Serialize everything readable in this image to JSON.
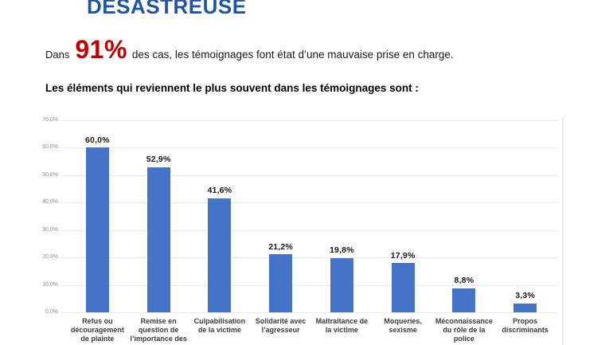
{
  "title": "DÉSASTREUSE",
  "intro": {
    "prefix": "Dans",
    "highlight": "91%",
    "suffix": "des cas, les témoignages font état d’une mauvaise prise en charge."
  },
  "chart_heading": "Les éléments qui reviennent le plus souvent dans les témoignages sont :",
  "colors": {
    "title_blue": "#2155a3",
    "highlight_red": "#c00000",
    "bar_blue": "#4573c8",
    "gridline": "#e9e9e9",
    "y_tick_label": "#8a8a8a",
    "category_label": "#3c3c3c",
    "value_label": "#151515"
  },
  "chart_data": {
    "type": "bar",
    "title": "",
    "xlabel": "",
    "ylabel": "",
    "ylim": [
      0,
      70
    ],
    "grid": true,
    "legend": false,
    "categories": [
      "Refus ou découragement de plainte",
      "Remise en question de l’importance des",
      "Culpabilisation de la victime",
      "Solidarité avec l’agresseur",
      "Maltraitance de la victime",
      "Moqueries, sexisme",
      "Méconnaissance du rôle de la police",
      "Propos discriminants"
    ],
    "category_lines": [
      [
        "Refus ou",
        "découragement",
        "de plainte"
      ],
      [
        "Remise en",
        "question de",
        "l’importance des"
      ],
      [
        "Culpabilisation",
        "de la victime"
      ],
      [
        "Solidarité avec",
        "l’agresseur"
      ],
      [
        "Maltraitance de",
        "la victime"
      ],
      [
        "Moqueries,",
        "sexisme"
      ],
      [
        "Méconnaissance",
        "du rôle de la",
        "police"
      ],
      [
        "Propos",
        "discriminants"
      ]
    ],
    "values": [
      60.0,
      52.9,
      41.6,
      21.2,
      19.8,
      17.9,
      8.8,
      3.3
    ],
    "value_labels": [
      "60,0%",
      "52,9%",
      "41,6%",
      "21,2%",
      "19,8%",
      "17,9%",
      "8,8%",
      "3,3%"
    ],
    "y_ticks": [
      "70,0%",
      "60,0%",
      "50,0%",
      "40,0%",
      "30,0%",
      "20,0%",
      "10,0%",
      "0,0%"
    ]
  }
}
